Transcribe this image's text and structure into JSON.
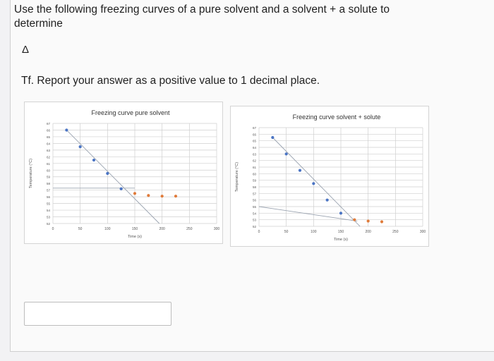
{
  "question": {
    "line1": "Use the following freezing curves of a pure solvent and a solvent + a solute to determine",
    "delta": "Δ",
    "line2": "Tf. Report your answer as a positive value to 1 decimal place."
  },
  "chart_data": [
    {
      "type": "scatter",
      "title": "Freezing curve pure solvent",
      "xlabel": "Time (s)",
      "ylabel": "Temperature (°C)",
      "x_ticks": [
        0,
        50,
        100,
        150,
        200,
        250,
        300
      ],
      "y_ticks": [
        52,
        53,
        54,
        55,
        56,
        57,
        58,
        59,
        60,
        61,
        62,
        63,
        64,
        65,
        66,
        67
      ],
      "xlim": [
        0,
        300
      ],
      "ylim": [
        52,
        67
      ],
      "grid": true,
      "series": [
        {
          "color": "#4a74c4",
          "points": [
            [
              25,
              66
            ],
            [
              50,
              63.5
            ],
            [
              75,
              61.5
            ],
            [
              100,
              59.5
            ],
            [
              125,
              57.2
            ]
          ]
        },
        {
          "color": "#e07b3a",
          "points": [
            [
              150,
              56.5
            ],
            [
              175,
              56.2
            ],
            [
              200,
              56.1
            ],
            [
              225,
              56.1
            ]
          ]
        }
      ],
      "trend_lines": [
        {
          "from": [
            25,
            66
          ],
          "to": [
            195,
            52
          ]
        },
        {
          "from": [
            0,
            57.3
          ],
          "to": [
            150,
            57.3
          ]
        }
      ]
    },
    {
      "type": "scatter",
      "title": "Freezing curve solvent + solute",
      "xlabel": "Time (s)",
      "ylabel": "Temperature (°C)",
      "x_ticks": [
        0,
        50,
        100,
        150,
        200,
        250,
        300
      ],
      "y_ticks": [
        52,
        53,
        54,
        55,
        56,
        57,
        58,
        59,
        60,
        61,
        62,
        63,
        64,
        65,
        66,
        67
      ],
      "xlim": [
        0,
        300
      ],
      "ylim": [
        52,
        67
      ],
      "grid": true,
      "series": [
        {
          "color": "#4a74c4",
          "points": [
            [
              25,
              65.5
            ],
            [
              50,
              63
            ],
            [
              75,
              60.5
            ],
            [
              100,
              58.5
            ],
            [
              125,
              56
            ],
            [
              150,
              54
            ]
          ]
        },
        {
          "color": "#e07b3a",
          "points": [
            [
              175,
              53
            ],
            [
              200,
              52.8
            ],
            [
              225,
              52.7
            ]
          ]
        }
      ],
      "trend_lines": [
        {
          "from": [
            25,
            65.5
          ],
          "to": [
            185,
            52
          ]
        },
        {
          "from": [
            0,
            55
          ],
          "to": [
            180,
            52.8
          ]
        }
      ]
    }
  ]
}
